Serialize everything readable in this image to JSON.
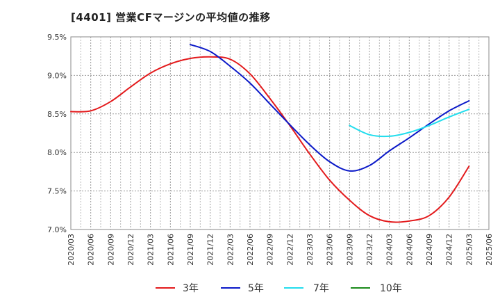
{
  "chart_data": {
    "type": "line",
    "title": "[4401]  営業CFマージンの平均値の推移",
    "xlabel": "",
    "ylabel": "",
    "y_tick_labels": [
      "9.5%",
      "9.0%",
      "8.5%",
      "8.0%",
      "7.5%",
      "7.0%"
    ],
    "y_ticks": [
      9.5,
      9.0,
      8.5,
      8.0,
      7.5,
      7.0
    ],
    "ylim": [
      7.0,
      9.5
    ],
    "x_tick_labels": [
      "2020/03",
      "2020/06",
      "2020/09",
      "2020/12",
      "2021/03",
      "2021/06",
      "2021/09",
      "2021/12",
      "2022/03",
      "2022/06",
      "2022/09",
      "2022/12",
      "2023/03",
      "2023/06",
      "2023/09",
      "2023/12",
      "2024/03",
      "2024/06",
      "2024/09",
      "2024/12",
      "2025/03",
      "2025/06"
    ],
    "grid": true,
    "legend_position": "bottom",
    "series": [
      {
        "name": "3年",
        "color": "#e31a1c",
        "x": [
          "2020/03",
          "2020/06",
          "2020/09",
          "2020/12",
          "2021/03",
          "2021/06",
          "2021/09",
          "2021/12",
          "2022/03",
          "2022/06",
          "2022/09",
          "2022/12",
          "2023/03",
          "2023/06",
          "2023/09",
          "2023/12",
          "2024/03",
          "2024/06",
          "2024/09",
          "2024/12",
          "2025/03"
        ],
        "values": [
          8.53,
          8.54,
          8.66,
          8.85,
          9.03,
          9.15,
          9.22,
          9.24,
          9.21,
          9.02,
          8.7,
          8.35,
          7.98,
          7.64,
          7.38,
          7.18,
          7.1,
          7.11,
          7.18,
          7.42,
          7.82
        ]
      },
      {
        "name": "5年",
        "color": "#0a18c8",
        "x": [
          "2021/09",
          "2021/12",
          "2022/03",
          "2022/06",
          "2022/09",
          "2022/12",
          "2023/03",
          "2023/06",
          "2023/09",
          "2023/12",
          "2024/03",
          "2024/06",
          "2024/09",
          "2024/12",
          "2025/03"
        ],
        "values": [
          9.4,
          9.31,
          9.12,
          8.9,
          8.63,
          8.36,
          8.1,
          7.88,
          7.76,
          7.83,
          8.02,
          8.19,
          8.37,
          8.54,
          8.67
        ]
      },
      {
        "name": "7年",
        "color": "#22dded",
        "x": [
          "2023/09",
          "2023/12",
          "2024/03",
          "2024/06",
          "2024/09",
          "2024/12",
          "2025/03"
        ],
        "values": [
          8.35,
          8.23,
          8.21,
          8.26,
          8.35,
          8.46,
          8.56
        ]
      },
      {
        "name": "10年",
        "color": "#1a8a1a",
        "x": [],
        "values": []
      }
    ]
  }
}
